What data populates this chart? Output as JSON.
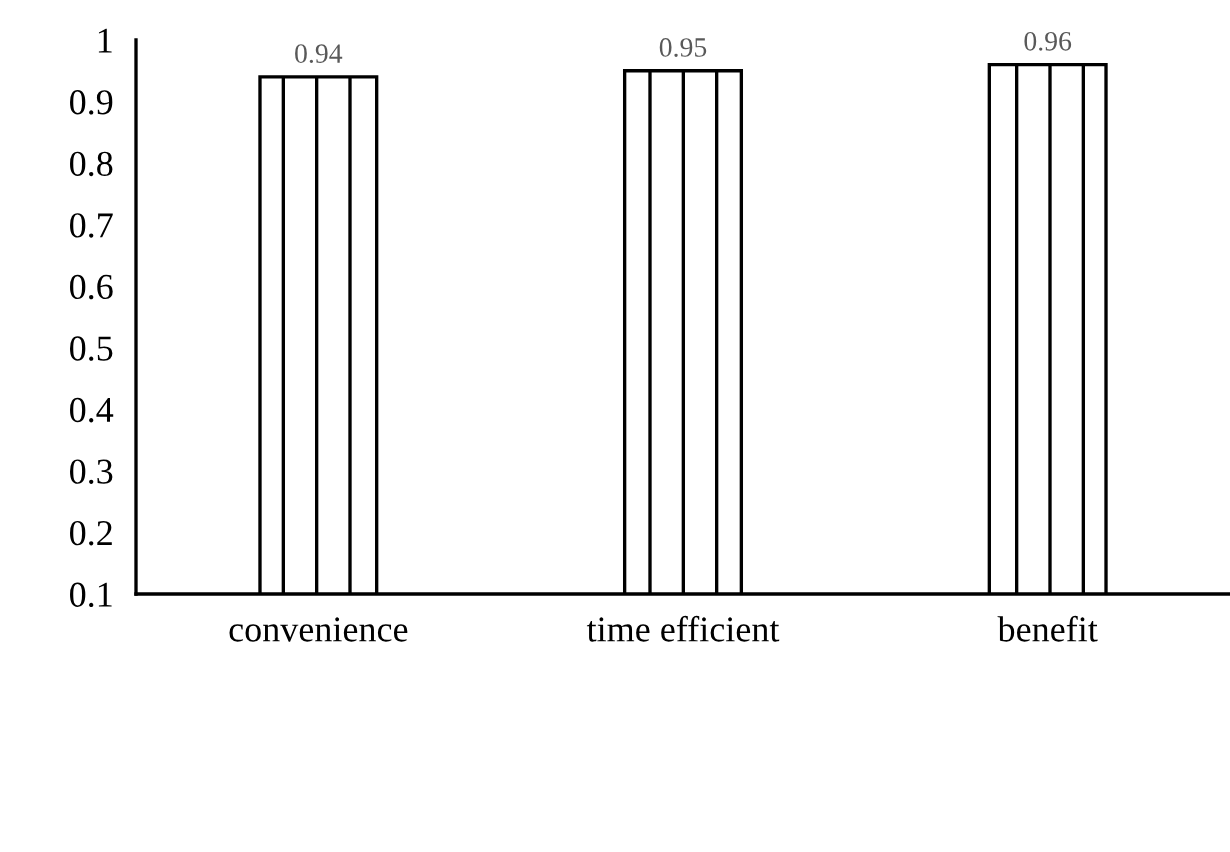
{
  "chart_data": {
    "type": "bar",
    "categories": [
      "convenience",
      "time efficient",
      "benefit"
    ],
    "values": [
      0.94,
      0.95,
      0.96
    ],
    "color": "#000000",
    "ylim": [
      0.1,
      1
    ],
    "yticks": [
      0.1,
      0.2,
      0.3,
      0.4,
      0.5,
      0.6,
      0.7,
      0.8,
      0.9,
      1
    ],
    "data_labels": true,
    "grid": false,
    "legend": false
  }
}
